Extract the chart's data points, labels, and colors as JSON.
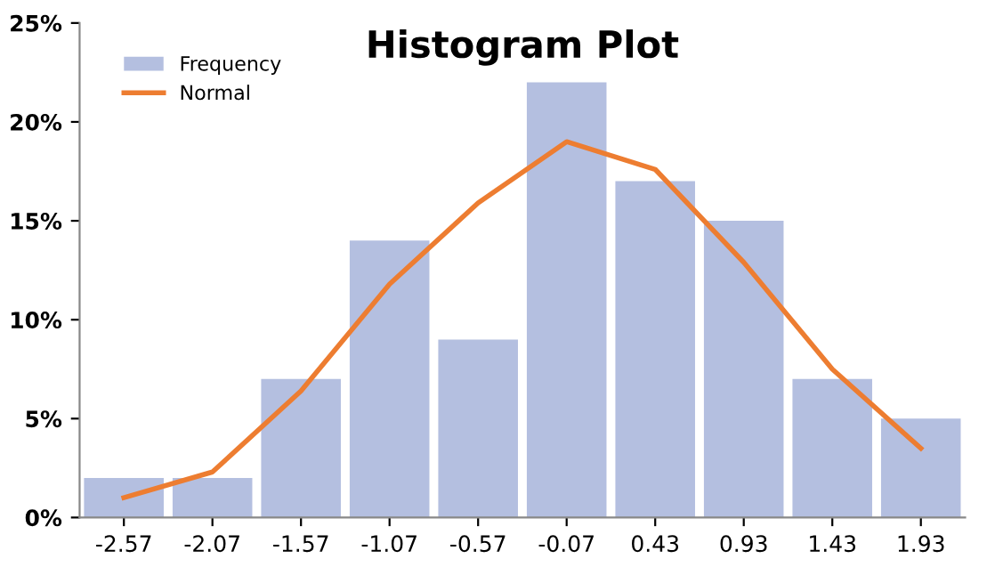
{
  "chart_data": {
    "type": "bar",
    "title": "Histogram Plot",
    "categories": [
      "-2.57",
      "-2.07",
      "-1.57",
      "-1.07",
      "-0.57",
      "-0.07",
      "0.43",
      "0.93",
      "1.43",
      "1.93"
    ],
    "series": [
      {
        "name": "Frequency",
        "color": "#b4bfe0",
        "values": [
          2,
          2,
          7,
          14,
          9,
          22,
          17,
          15,
          7,
          5
        ]
      },
      {
        "name": "Normal",
        "type": "line",
        "color": "#ed7d31",
        "values": [
          1.0,
          2.3,
          6.4,
          11.8,
          15.9,
          19.0,
          17.6,
          12.9,
          7.5,
          3.5
        ]
      }
    ],
    "ylim": [
      0,
      25
    ],
    "yticks": [
      {
        "value": 0,
        "label": "0%"
      },
      {
        "value": 5,
        "label": "5%"
      },
      {
        "value": 10,
        "label": "10%"
      },
      {
        "value": 15,
        "label": "15%"
      },
      {
        "value": 20,
        "label": "20%"
      },
      {
        "value": 25,
        "label": "25%"
      }
    ],
    "grid": false,
    "legend": "top left",
    "marker": "none",
    "line_style": "solid"
  }
}
